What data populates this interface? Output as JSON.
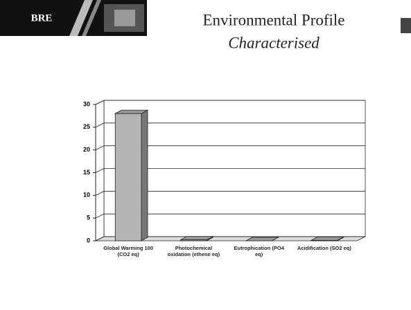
{
  "header": {
    "logo": "BRE"
  },
  "chart_data": {
    "type": "bar",
    "title": "Environmental Profile",
    "subtitle": "Characterised",
    "categories": [
      "Global Warming 100 (CO2 eq)",
      "Photochemical oxidation (ethene eq)",
      "Eutrophication (PO4 eq)",
      "Acidification (SO2 eq)"
    ],
    "values": [
      28,
      0.2,
      0,
      0.1
    ],
    "color": "#b4b4b4",
    "ylim": [
      0,
      30
    ],
    "yticks": [
      0,
      5,
      10,
      15,
      20,
      25,
      30
    ],
    "grid": true
  }
}
